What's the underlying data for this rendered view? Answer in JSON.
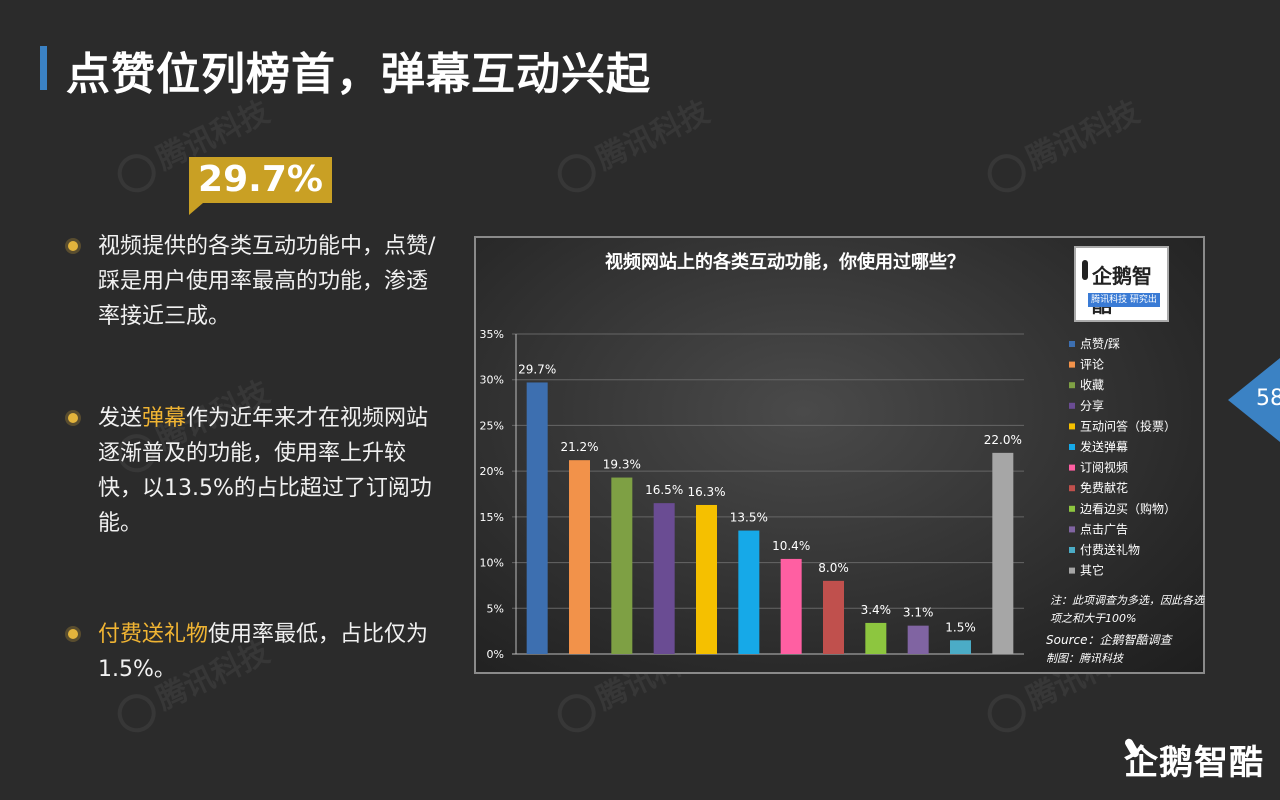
{
  "title": "点赞位列榜首，弹幕互动兴起",
  "callout": "29.7%",
  "bullets": [
    {
      "pre": "视频提供的各类互动功能中，点赞/踩是用户使用率最高的功能，渗透率接近三成。",
      "hl": "",
      "post": ""
    },
    {
      "pre": "发送",
      "hl": "弹幕",
      "post": "作为近年来才在视频网站逐渐普及的功能，使用率上升较快，以13.5%的占比超过了订阅功能。"
    },
    {
      "pre": "",
      "hl": "付费送礼物",
      "post": "使用率最低，占比仅为1.5%。"
    }
  ],
  "logo": {
    "name": "企鹅智酷",
    "sub": "腾讯科技 研究出品"
  },
  "page_number": "58",
  "brand": "企鹅智酷",
  "watermark": "腾讯科技",
  "colors": {
    "accent": "#3b82c4",
    "highlight": "#f0b433",
    "callout": "#c9a024"
  },
  "chart_data": {
    "type": "bar",
    "title": "视频网站上的各类互动功能，你使用过哪些？",
    "categories": [
      "点赞/踩",
      "评论",
      "收藏",
      "分享",
      "互动问答（投票）",
      "发送弹幕",
      "订阅视频",
      "免费献花",
      "边看边买（购物）",
      "点击广告",
      "付费送礼物",
      "其它"
    ],
    "values": [
      29.7,
      21.2,
      19.3,
      16.5,
      16.3,
      13.5,
      10.4,
      8.0,
      3.4,
      3.1,
      1.5,
      22.0
    ],
    "value_labels": [
      "29.7%",
      "21.2%",
      "19.3%",
      "16.5%",
      "16.3%",
      "13.5%",
      "10.4%",
      "8.0%",
      "3.4%",
      "3.1%",
      "1.5%",
      "22.0%"
    ],
    "colors": [
      "#3d6fb0",
      "#f2924a",
      "#7ea044",
      "#6a4c93",
      "#f5c000",
      "#16a9e8",
      "#ff5fa2",
      "#c0504d",
      "#8dc63f",
      "#8064a2",
      "#4bacc6",
      "#a6a6a6"
    ],
    "ylim": [
      0,
      35
    ],
    "yticks": [
      "0%",
      "5%",
      "10%",
      "15%",
      "20%",
      "25%",
      "30%",
      "35%"
    ],
    "legend": "right",
    "note": "注：此项调查为多选，因此各选项之和大于100%",
    "source": "Source：企鹅智酷调查",
    "maker": "制图：腾讯科技"
  }
}
